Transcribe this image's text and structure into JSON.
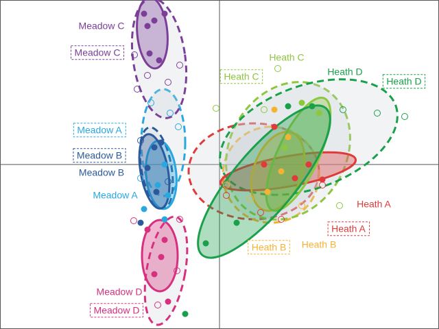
{
  "chart_data": {
    "type": "scatter",
    "xlim": [
      -3.2,
      3.2
    ],
    "ylim": [
      -2.4,
      2.4
    ],
    "series": [
      {
        "name": "Meadow A",
        "color": "#29a8e0",
        "dashed": false,
        "x": [
          -0.8,
          -0.9,
          -0.75,
          -1.1,
          -0.8
        ],
        "y": [
          0,
          -0.3,
          -0.45,
          -0.65,
          -0.8
        ],
        "ellipse": {
          "cx": -0.85,
          "cy": -0.15,
          "rx": 0.22,
          "ry": 0.5,
          "angle": -5
        }
      },
      {
        "name": "Meadow A",
        "color": "#29a8e0",
        "dashed": true,
        "x": [
          -0.72,
          -1.0,
          -0.6,
          -1.15
        ],
        "y": [
          0.75,
          0.9,
          0.55,
          -0.2
        ],
        "ellipse": {
          "cx": -0.82,
          "cy": 0.32,
          "rx": 0.32,
          "ry": 0.78,
          "angle": 0
        }
      },
      {
        "name": "Meadow B",
        "color": "#2a5a9b",
        "dashed": false,
        "x": [
          -0.95,
          -0.85,
          -1.05,
          -0.92,
          -1.15
        ],
        "y": [
          0.25,
          0.32,
          -0.05,
          -0.4,
          -0.85
        ],
        "ellipse": {
          "cx": -0.95,
          "cy": -0.1,
          "rx": 0.2,
          "ry": 0.55,
          "angle": -10
        }
      },
      {
        "name": "Meadow B",
        "color": "#2a5a9b",
        "dashed": true,
        "x": [
          -1.15,
          -0.75
        ],
        "y": [
          0.35,
          -0.25
        ],
        "ellipse": {
          "cx": -0.92,
          "cy": -0.05,
          "rx": 0.22,
          "ry": 0.6,
          "angle": -10
        }
      },
      {
        "name": "Meadow C",
        "color": "#7b3f98",
        "dashed": false,
        "x": [
          -1.1,
          -1.05,
          -0.95,
          -1.02,
          -0.88,
          -0.8
        ],
        "y": [
          2.2,
          2.02,
          2.1,
          1.62,
          1.52,
          2.2
        ],
        "ellipse": {
          "cx": -0.98,
          "cy": 1.92,
          "rx": 0.22,
          "ry": 0.52,
          "angle": -5
        }
      },
      {
        "name": "Meadow C",
        "color": "#7b3f98",
        "dashed": true,
        "x": [
          -1.05,
          -1.2,
          -0.58,
          -1.24,
          -0.75
        ],
        "y": [
          1.3,
          1.1,
          1.45,
          1.6,
          1.2
        ],
        "ellipse": {
          "cx": -0.88,
          "cy": 1.55,
          "rx": 0.38,
          "ry": 0.88,
          "angle": -8
        }
      },
      {
        "name": "Meadow D",
        "color": "#d6307f",
        "dashed": false,
        "x": [
          -1.05,
          -0.8,
          -0.85,
          -0.95,
          -0.75
        ],
        "y": [
          -0.95,
          -1.1,
          -1.35,
          -1.6,
          -2.0
        ],
        "ellipse": {
          "cx": -0.87,
          "cy": -1.33,
          "rx": 0.26,
          "ry": 0.52,
          "angle": 0
        }
      },
      {
        "name": "Meadow D",
        "color": "#d6307f",
        "dashed": true,
        "x": [
          -1.25,
          -0.58,
          -0.9,
          -0.62
        ],
        "y": [
          -0.82,
          -0.8,
          -2.05,
          -1.55
        ],
        "ellipse": {
          "cx": -0.78,
          "cy": -1.55,
          "rx": 0.28,
          "ry": 0.8,
          "angle": 10
        }
      },
      {
        "name": "Heath A",
        "color": "#e03a3a",
        "dashed": false,
        "x": [
          1.5,
          1.1,
          0.8,
          0.65,
          1.3
        ],
        "y": [
          -0.22,
          -0.2,
          0.55,
          0,
          0
        ],
        "ellipse": {
          "cx": 1.0,
          "cy": -0.1,
          "rx": 1.0,
          "ry": 0.22,
          "angle": -10
        }
      },
      {
        "name": "Heath A",
        "color": "#e03a3a",
        "dashed": true,
        "x": [
          0.1,
          0.6,
          0.9,
          1.5
        ],
        "y": [
          -0.45,
          -0.7,
          -0.8,
          -0.3
        ],
        "ellipse": {
          "cx": 0.5,
          "cy": -0.1,
          "rx": 0.95,
          "ry": 0.7,
          "angle": 0
        }
      },
      {
        "name": "Heath B",
        "color": "#f5b335",
        "dashed": false,
        "x": [
          0.8,
          0.9,
          1.0,
          0.7
        ],
        "y": [
          0.8,
          -0.1,
          0.4,
          -0.4
        ],
        "ellipse": {
          "cx": 0.85,
          "cy": -0.1,
          "rx": 0.35,
          "ry": 0.6,
          "angle": 20
        }
      },
      {
        "name": "Heath B",
        "color": "#f5b335",
        "dashed": true,
        "x": [
          0.1,
          1.2,
          0.45
        ],
        "y": [
          -0.3,
          -0.6,
          -0.5
        ],
        "ellipse": {
          "cx": 0.75,
          "cy": -0.15,
          "rx": 0.7,
          "ry": 0.7,
          "angle": 0
        }
      },
      {
        "name": "Heath C",
        "color": "#8dc63f",
        "dashed": false,
        "x": [
          1.45,
          1.2,
          0.95
        ],
        "y": [
          0.75,
          0.9,
          0.25
        ],
        "ellipse": {
          "cx": 1.15,
          "cy": 0.15,
          "rx": 0.3,
          "ry": 0.9,
          "angle": 25
        }
      },
      {
        "name": "Heath C",
        "color": "#8dc63f",
        "dashed": true,
        "x": [
          0.85,
          -0.05,
          0.65,
          1.75
        ],
        "y": [
          1.4,
          0.82,
          0.8,
          -0.6
        ],
        "ellipse": {
          "cx": 1.0,
          "cy": 0.2,
          "rx": 0.85,
          "ry": 1.05,
          "angle": 30
        }
      },
      {
        "name": "Heath D",
        "color": "#1a9f4b",
        "dashed": false,
        "x": [
          -0.2,
          0.25,
          1.0,
          1.35,
          -0.5
        ],
        "y": [
          -1.15,
          -0.85,
          0.85,
          0.85,
          -2.18
        ],
        "ellipse": {
          "cx": 0.65,
          "cy": -0.25,
          "rx": 0.45,
          "ry": 1.4,
          "angle": 40
        }
      },
      {
        "name": "Heath D",
        "color": "#1a9f4b",
        "dashed": true,
        "x": [
          2.3,
          1.8,
          2.7
        ],
        "y": [
          0.75,
          0.8,
          0.7
        ],
        "ellipse": {
          "cx": 1.3,
          "cy": 0.4,
          "rx": 1.35,
          "ry": 0.75,
          "angle": -20
        }
      }
    ]
  }
}
